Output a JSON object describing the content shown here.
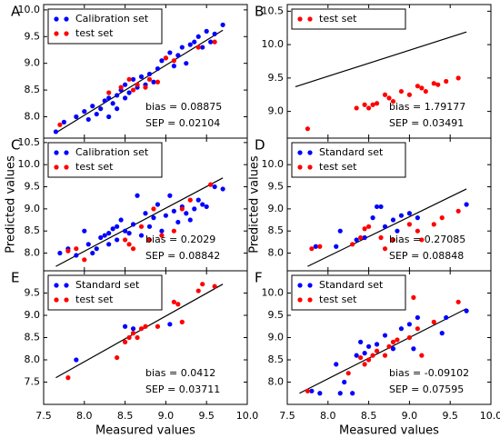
{
  "chart_data": [
    {
      "type": "scatter",
      "panel": "A",
      "xlim": [
        7.5,
        10.0
      ],
      "ylim": [
        7.6,
        10.1
      ],
      "xticks": [
        7.5,
        8,
        8.5,
        9,
        9.5,
        10
      ],
      "yticks": [
        {
          "value": 8,
          "label": "8.0"
        },
        {
          "value": 8.5,
          "label": "8.5"
        },
        {
          "value": 9,
          "label": "9.0"
        },
        {
          "value": 9.5,
          "label": "9.5"
        },
        {
          "value": 10,
          "label": "10.0"
        }
      ],
      "legend": "upper left",
      "series": [
        {
          "name": "Calibration set",
          "color": "#0000ff",
          "x": [
            7.65,
            7.75,
            7.9,
            8.0,
            8.05,
            8.1,
            8.15,
            8.2,
            8.25,
            8.3,
            8.3,
            8.35,
            8.4,
            8.4,
            8.45,
            8.5,
            8.5,
            8.55,
            8.6,
            8.65,
            8.7,
            8.75,
            8.8,
            8.85,
            8.9,
            8.95,
            9.0,
            9.05,
            9.1,
            9.15,
            9.2,
            9.25,
            9.3,
            9.35,
            9.4,
            9.45,
            9.5,
            9.55,
            9.6,
            9.7
          ],
          "values": [
            7.72,
            7.9,
            8.0,
            8.1,
            7.95,
            8.2,
            8.05,
            8.15,
            8.3,
            8.0,
            8.35,
            8.25,
            8.4,
            8.15,
            8.5,
            8.35,
            8.6,
            8.45,
            8.7,
            8.55,
            8.75,
            8.6,
            8.8,
            8.65,
            8.9,
            9.05,
            9.1,
            9.2,
            8.95,
            9.15,
            9.3,
            9.0,
            9.35,
            9.4,
            9.5,
            9.3,
            9.6,
            9.4,
            9.55,
            9.72
          ]
        },
        {
          "name": "test set",
          "color": "#ff0000",
          "x": [
            7.7,
            8.3,
            8.45,
            8.55,
            8.6,
            8.65,
            8.75,
            8.8,
            8.9,
            9.0,
            9.1,
            9.4,
            9.6
          ],
          "values": [
            7.85,
            8.45,
            8.55,
            8.7,
            8.5,
            8.6,
            8.55,
            8.7,
            8.65,
            9.1,
            9.05,
            9.3,
            9.4
          ]
        }
      ],
      "line": {
        "x": [
          7.65,
          9.7
        ],
        "y": [
          7.7,
          9.62
        ]
      },
      "annotations": [
        "bias = 0.08875",
        "SEP = 0.02104"
      ]
    },
    {
      "type": "scatter",
      "panel": "B",
      "xlim": [
        7.5,
        10.0
      ],
      "ylim": [
        8.6,
        10.6
      ],
      "xticks": [
        7.5,
        8,
        8.5,
        9,
        9.5,
        10
      ],
      "yticks": [
        {
          "value": 9,
          "label": "9.0"
        },
        {
          "value": 9.5,
          "label": "9.5"
        },
        {
          "value": 10,
          "label": "10.0"
        },
        {
          "value": 10.5,
          "label": "10.5"
        }
      ],
      "legend": "upper left",
      "series": [
        {
          "name": "test set",
          "color": "#ff0000",
          "x": [
            7.75,
            8.35,
            8.45,
            8.5,
            8.55,
            8.6,
            8.7,
            8.75,
            8.8,
            8.9,
            9.0,
            9.1,
            9.15,
            9.2,
            9.3,
            9.35,
            9.45,
            9.6
          ],
          "values": [
            8.74,
            9.05,
            9.1,
            9.05,
            9.1,
            9.12,
            9.25,
            9.2,
            9.15,
            9.3,
            9.25,
            9.38,
            9.35,
            9.3,
            9.42,
            9.4,
            9.45,
            9.5
          ]
        }
      ],
      "line": {
        "x": [
          7.6,
          9.7
        ],
        "y": [
          9.37,
          10.19
        ]
      },
      "annotations": [
        "bias = 1.79177",
        "SEP = 0.03491"
      ]
    },
    {
      "type": "scatter",
      "panel": "C",
      "xlim": [
        7.5,
        10.0
      ],
      "ylim": [
        7.6,
        10.6
      ],
      "ylabel": "Predicted values",
      "xticks": [
        7.5,
        8,
        8.5,
        9,
        9.5,
        10
      ],
      "yticks": [
        {
          "value": 8,
          "label": "8.0"
        },
        {
          "value": 8.5,
          "label": "8.5"
        },
        {
          "value": 9,
          "label": "9.0"
        },
        {
          "value": 9.5,
          "label": "9.5"
        },
        {
          "value": 10,
          "label": "10.0"
        },
        {
          "value": 10.5,
          "label": "10.5"
        }
      ],
      "legend": "upper left",
      "series": [
        {
          "name": "Calibration set",
          "color": "#0000ff",
          "x": [
            7.7,
            7.8,
            7.9,
            8.0,
            8.05,
            8.1,
            8.15,
            8.2,
            8.25,
            8.3,
            8.3,
            8.35,
            8.4,
            8.4,
            8.45,
            8.5,
            8.55,
            8.6,
            8.65,
            8.7,
            8.75,
            8.8,
            8.85,
            8.9,
            8.95,
            9.0,
            9.05,
            9.1,
            9.15,
            9.2,
            9.25,
            9.3,
            9.35,
            9.4,
            9.45,
            9.5,
            9.6,
            9.7
          ],
          "values": [
            8.0,
            8.1,
            7.95,
            8.5,
            8.2,
            8.0,
            8.1,
            8.35,
            8.4,
            8.45,
            8.2,
            8.55,
            8.6,
            8.3,
            8.75,
            8.5,
            8.45,
            8.65,
            9.3,
            8.4,
            8.9,
            8.6,
            8.8,
            9.1,
            8.5,
            8.85,
            9.3,
            8.95,
            8.7,
            9.05,
            8.9,
            8.75,
            9.0,
            9.2,
            9.1,
            9.05,
            9.5,
            9.45
          ]
        },
        {
          "name": "test set",
          "color": "#ff0000",
          "x": [
            7.8,
            7.9,
            8.0,
            8.5,
            8.55,
            8.6,
            8.7,
            8.8,
            8.85,
            8.95,
            9.1,
            9.2,
            9.3,
            9.55
          ],
          "values": [
            8.05,
            8.1,
            7.85,
            8.3,
            8.2,
            8.1,
            8.6,
            8.3,
            9.0,
            8.4,
            8.5,
            9.0,
            9.2,
            9.55
          ]
        }
      ],
      "line": {
        "x": [
          7.65,
          9.7
        ],
        "y": [
          7.7,
          9.7
        ]
      },
      "annotations": [
        "bias = 0.2029",
        "SEP = 0.08842"
      ]
    },
    {
      "type": "scatter",
      "panel": "D",
      "xlim": [
        7.5,
        10.0
      ],
      "ylim": [
        7.6,
        10.6
      ],
      "ylabel": "Predicted values",
      "xticks": [
        7.5,
        8,
        8.5,
        9,
        9.5,
        10
      ],
      "yticks": [
        {
          "value": 8,
          "label": "8.0"
        },
        {
          "value": 8.5,
          "label": "8.5"
        },
        {
          "value": 9,
          "label": "9.0"
        },
        {
          "value": 9.5,
          "label": "9.5"
        },
        {
          "value": 10,
          "label": "10.0"
        }
      ],
      "legend": "upper left",
      "series": [
        {
          "name": "Standard set",
          "color": "#0000ff",
          "x": [
            7.85,
            8.1,
            8.15,
            8.35,
            8.45,
            8.55,
            8.6,
            8.65,
            8.7,
            8.8,
            8.85,
            8.9,
            9.0,
            9.1,
            9.7
          ],
          "values": [
            8.15,
            8.15,
            8.5,
            8.3,
            8.35,
            8.8,
            9.05,
            9.05,
            8.6,
            8.75,
            8.5,
            8.85,
            8.9,
            8.8,
            9.1
          ]
        },
        {
          "name": "test set",
          "color": "#ff0000",
          "x": [
            7.8,
            7.9,
            8.3,
            8.4,
            8.45,
            8.5,
            8.65,
            8.7,
            8.8,
            9.0,
            9.1,
            9.15,
            9.3,
            9.4,
            9.6
          ],
          "values": [
            8.1,
            8.15,
            8.2,
            8.35,
            8.55,
            8.6,
            8.35,
            8.1,
            8.3,
            8.65,
            8.5,
            8.3,
            8.65,
            8.8,
            8.95
          ]
        }
      ],
      "line": {
        "x": [
          7.75,
          9.7
        ],
        "y": [
          7.7,
          9.45
        ]
      },
      "annotations": [
        "bias = 0.27085",
        "SEP = 0.08848"
      ]
    },
    {
      "type": "scatter",
      "panel": "E",
      "xlim": [
        7.5,
        10.0
      ],
      "ylim": [
        7.0,
        10.0
      ],
      "xlabel": "Measured values",
      "xticks": [
        {
          "value": 7.5,
          "label": "7.5"
        },
        {
          "value": 8,
          "label": "8.0"
        },
        {
          "value": 8.5,
          "label": "8.5"
        },
        {
          "value": 9,
          "label": "9.0"
        },
        {
          "value": 9.5,
          "label": "9.5"
        },
        {
          "value": 10,
          "label": "10.0"
        }
      ],
      "yticks": [
        {
          "value": 7.5,
          "label": "7.5"
        },
        {
          "value": 8,
          "label": "8.0"
        },
        {
          "value": 8.5,
          "label": "8.5"
        },
        {
          "value": 9,
          "label": "9.0"
        },
        {
          "value": 9.5,
          "label": "9.5"
        }
      ],
      "legend": "upper left",
      "series": [
        {
          "name": "Standard set",
          "color": "#0000ff",
          "x": [
            7.9,
            8.5,
            8.6,
            9.05
          ],
          "values": [
            8.0,
            8.75,
            8.7,
            8.8
          ]
        },
        {
          "name": "test set",
          "color": "#ff0000",
          "x": [
            7.8,
            8.4,
            8.5,
            8.55,
            8.6,
            8.65,
            8.7,
            8.75,
            8.9,
            9.1,
            9.15,
            9.2,
            9.4,
            9.45,
            9.6
          ],
          "values": [
            7.6,
            8.05,
            8.4,
            8.5,
            8.6,
            8.5,
            8.7,
            8.75,
            8.75,
            9.3,
            9.25,
            8.85,
            9.55,
            9.7,
            9.65
          ]
        }
      ],
      "line": {
        "x": [
          7.65,
          9.7
        ],
        "y": [
          7.6,
          9.7
        ]
      },
      "annotations": [
        "bias = 0.0412",
        "SEP = 0.03711"
      ]
    },
    {
      "type": "scatter",
      "panel": "F",
      "xlim": [
        7.5,
        10.0
      ],
      "ylim": [
        7.5,
        10.5
      ],
      "xlabel": "Measured values",
      "xticks": [
        {
          "value": 7.5,
          "label": "7.5"
        },
        {
          "value": 8,
          "label": "8.0"
        },
        {
          "value": 8.5,
          "label": "8.5"
        },
        {
          "value": 9,
          "label": "9.0"
        },
        {
          "value": 9.5,
          "label": "9.5"
        },
        {
          "value": 10,
          "label": "10.0"
        }
      ],
      "yticks": [
        {
          "value": 8,
          "label": "8.0"
        },
        {
          "value": 8.5,
          "label": "8.5"
        },
        {
          "value": 9,
          "label": "9.0"
        },
        {
          "value": 9.5,
          "label": "9.5"
        },
        {
          "value": 10,
          "label": "10.0"
        }
      ],
      "legend": "upper left",
      "series": [
        {
          "name": "Standard set",
          "color": "#0000ff",
          "x": [
            7.8,
            7.9,
            8.1,
            8.15,
            8.2,
            8.3,
            8.35,
            8.4,
            8.45,
            8.5,
            8.6,
            8.7,
            8.8,
            8.9,
            9.0,
            9.05,
            9.1,
            9.4,
            9.45,
            9.7
          ],
          "values": [
            7.8,
            7.75,
            8.4,
            7.75,
            8.0,
            7.75,
            8.6,
            8.9,
            8.65,
            8.8,
            8.85,
            9.05,
            8.75,
            9.2,
            9.3,
            8.75,
            9.45,
            9.1,
            9.45,
            9.6
          ]
        },
        {
          "name": "test set",
          "color": "#ff0000",
          "x": [
            7.75,
            8.25,
            8.4,
            8.45,
            8.5,
            8.55,
            8.6,
            8.7,
            8.75,
            8.8,
            8.85,
            9.0,
            9.05,
            9.1,
            9.15,
            9.3,
            9.6
          ],
          "values": [
            7.8,
            8.2,
            8.55,
            8.4,
            8.5,
            8.6,
            8.7,
            8.6,
            8.8,
            8.9,
            8.95,
            9.0,
            9.9,
            9.2,
            8.6,
            9.35,
            9.8
          ]
        }
      ],
      "line": {
        "x": [
          7.65,
          9.7
        ],
        "y": [
          7.75,
          9.65
        ]
      },
      "annotations": [
        "bias = -0.09102",
        "SEP = 0.07595"
      ]
    }
  ]
}
